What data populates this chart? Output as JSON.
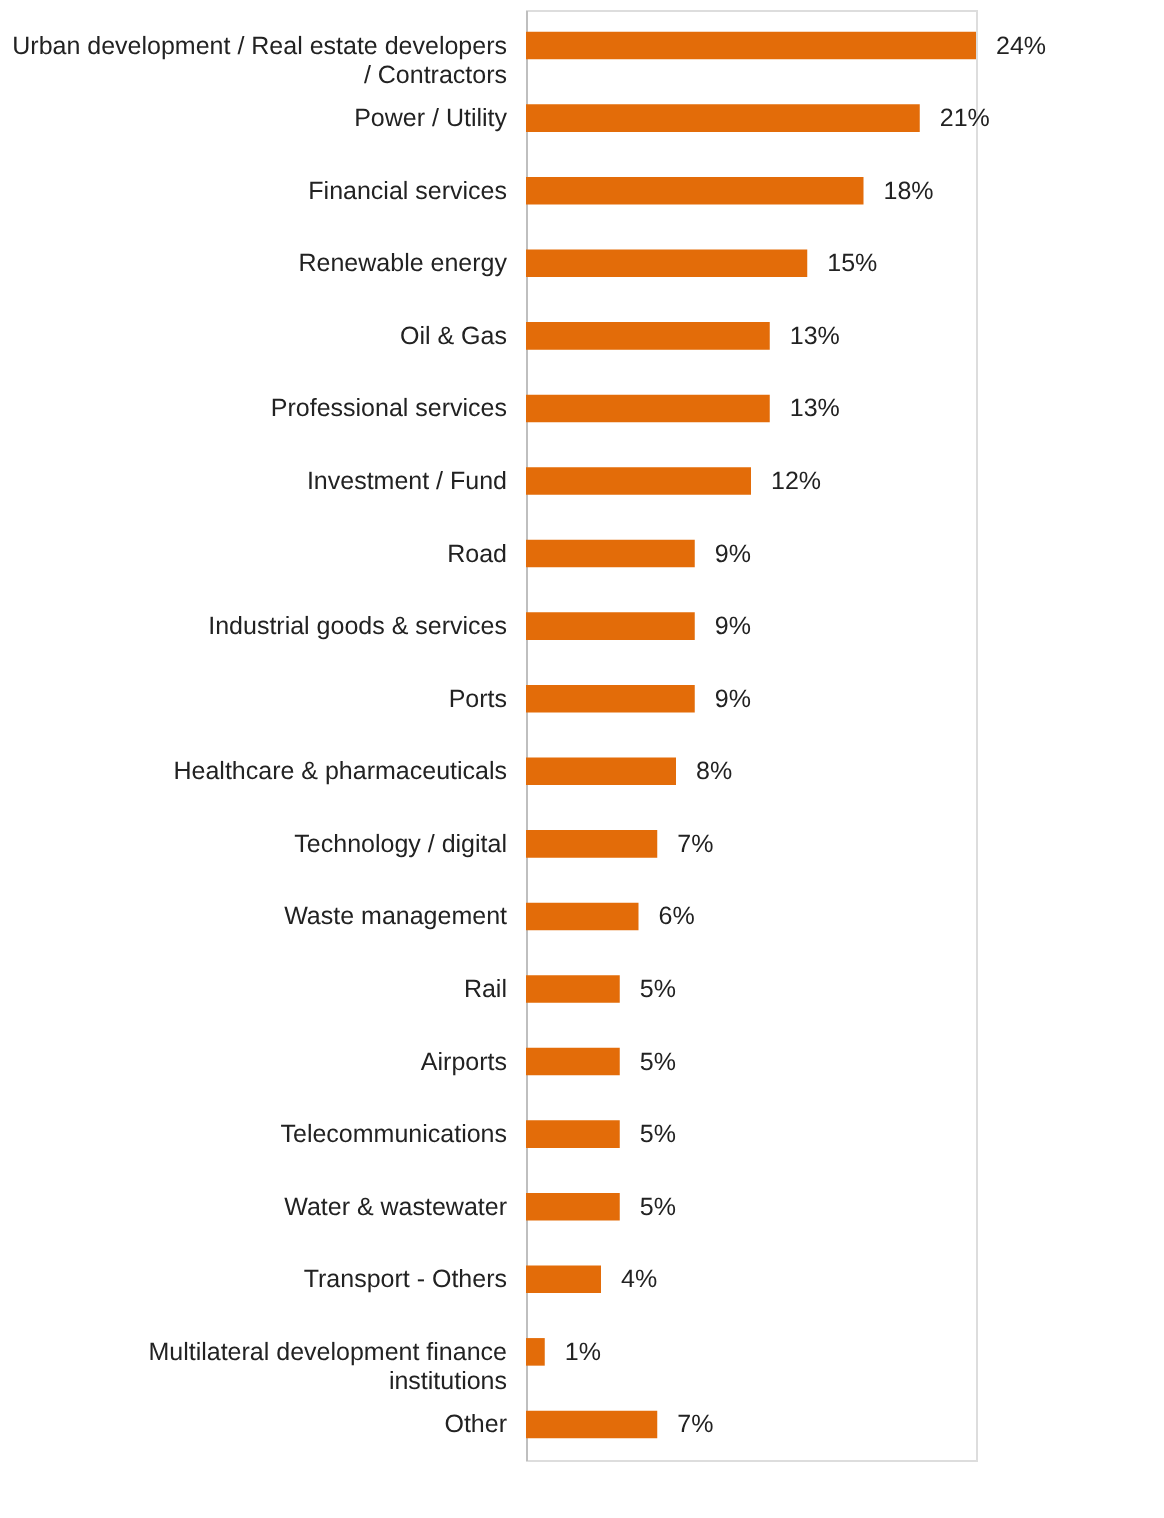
{
  "chart_data": {
    "type": "bar",
    "orientation": "horizontal",
    "categories": [
      "Urban development / Real estate developers\n/ Contractors",
      "Power / Utility",
      "Financial services",
      "Renewable energy",
      "Oil & Gas",
      "Professional services",
      "Investment / Fund",
      "Road",
      "Industrial goods & services",
      "Ports",
      "Healthcare & pharmaceuticals",
      "Technology / digital",
      "Waste management",
      "Rail",
      "Airports",
      "Telecommunications",
      "Water & wastewater",
      "Transport - Others",
      "Multilateral development finance\ninstitutions",
      "Other"
    ],
    "values": [
      24,
      21,
      18,
      15,
      13,
      13,
      12,
      9,
      9,
      9,
      8,
      7,
      6,
      5,
      5,
      5,
      5,
      4,
      1,
      7
    ],
    "value_labels": [
      "24%",
      "21%",
      "18%",
      "15%",
      "13%",
      "13%",
      "12%",
      "9%",
      "9%",
      "9%",
      "8%",
      "7%",
      "6%",
      "5%",
      "5%",
      "5%",
      "5%",
      "4%",
      "1%",
      "7%"
    ],
    "color": "#e36c09"
  }
}
